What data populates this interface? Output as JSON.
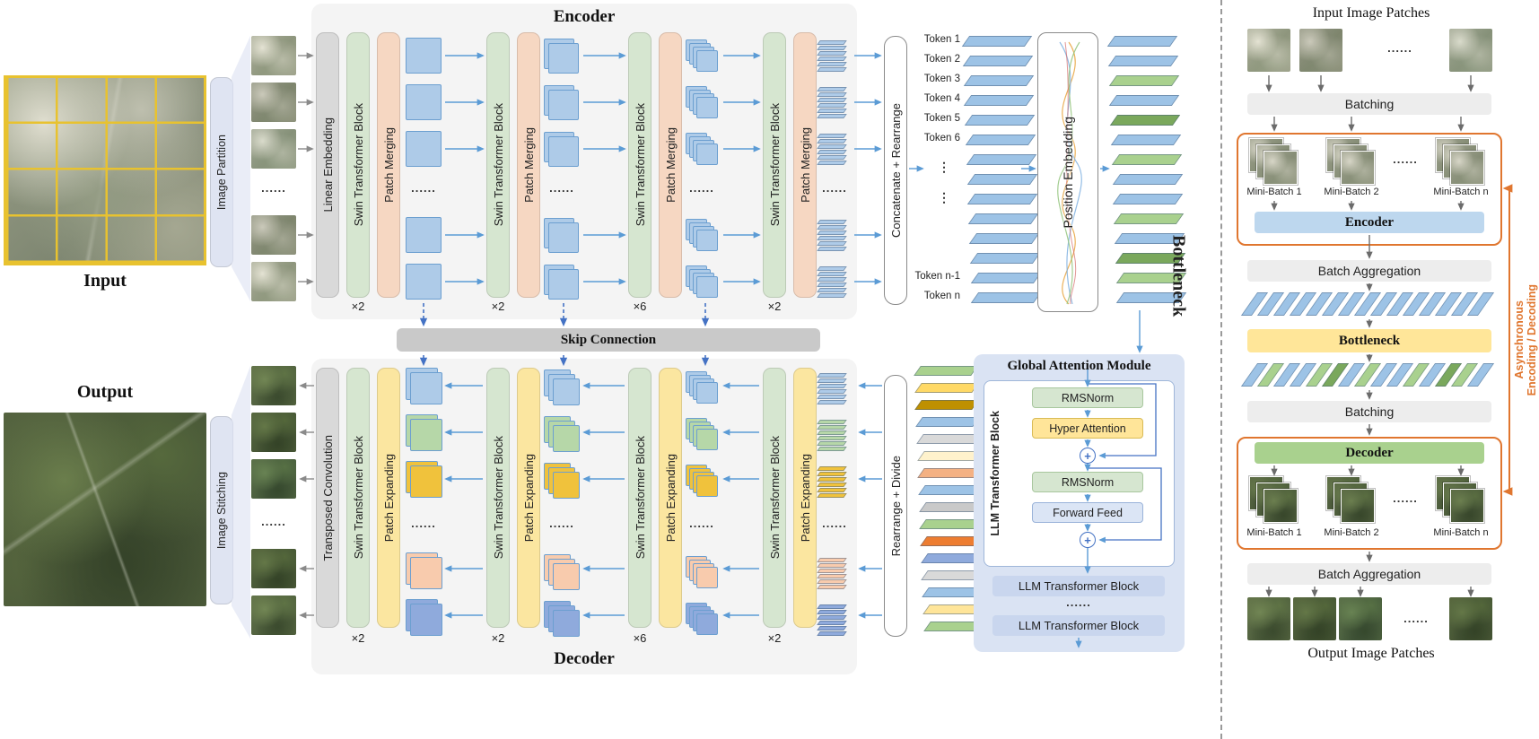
{
  "dots": "......",
  "vdots": "⋮",
  "colors": {
    "fmap": "#aecbe8",
    "fmapb": "#6c9fd0",
    "green": "#d6e6d0",
    "peach": "#f6d7c2",
    "yellow": "#fbe6a0",
    "gray": "#d9d9d9",
    "lavender": "#dfe4f2",
    "skip": "#c9c9c9",
    "fblue": "#aecbe8",
    "fgreen": "#b6d7a8",
    "gold": "#f0c23c",
    "fpeach": "#f8cbad",
    "peri": "#8faadc",
    "bslab": "#9dc3e6",
    "gslab": "#a9d18e",
    "gam": "#dae3f3",
    "llm": "#c9d6ee",
    "rms": "#d6e6d0",
    "hyper": "#ffe599",
    "ff": "#dbe5f5",
    "encb": "#bdd7ee",
    "decb": "#a9d18e",
    "botb": "#ffe699",
    "orange": "#e0762f",
    "arrow_blue": "#5b9bd5",
    "arrow_gray": "#8a8a8a",
    "dash_blue": "#4472c4"
  },
  "left": {
    "input_label": "Input",
    "output_label": "Output",
    "image_partition": "Image Partition",
    "image_stitching": "Image Stitching"
  },
  "encoder": {
    "title": "Encoder",
    "linear_embedding": "Linear Embedding",
    "swin_block": "Swin Transformer Block",
    "patch_merging": "Patch Merging",
    "multipliers": [
      "×2",
      "×2",
      "×6",
      "×2"
    ]
  },
  "skip_connection": "Skip Connection",
  "decoder": {
    "title": "Decoder",
    "transposed_convolution": "Transposed Convolution",
    "swin_block": "Swin Transformer Block",
    "patch_expanding": "Patch Expanding",
    "multipliers": [
      "×2",
      "×2",
      "×6",
      "×2"
    ]
  },
  "bottleneck": {
    "label": "Bottleneck",
    "concatenate": "Concatenate + Rearrange",
    "rearrange": "Rearrange + Divide",
    "position_embedding": "Position Embedding",
    "tokens_top": [
      "Token 1",
      "Token 2",
      "Token 3",
      "Token 4",
      "Token 5",
      "Token 6"
    ],
    "tokens_bottom": [
      "Token n-1",
      "Token n"
    ],
    "stack2_colors": [
      "#9dc3e6",
      "#9dc3e6",
      "#a9d18e",
      "#9dc3e6",
      "#7aa85c",
      "#9dc3e6",
      "#a9d18e",
      "#9dc3e6",
      "#9dc3e6",
      "#a9d18e",
      "#9dc3e6",
      "#7aa85c",
      "#a9d18e",
      "#9dc3e6"
    ],
    "stack3_colors": [
      "#a9d18e",
      "#ffd966",
      "#bf9000",
      "#9dc3e6",
      "#d9d9d9",
      "#fff2cc",
      "#f4b183",
      "#9dc3e6",
      "#c9c9c9",
      "#a9d18e",
      "#ed7d31",
      "#8faadc",
      "#d9d9d9",
      "#9dc3e6",
      "#ffe599",
      "#a9d18e"
    ]
  },
  "gam": {
    "title": "Global Attention Module",
    "llm_block_label": "LLM Transformer Block",
    "rmsnorm1": "RMSNorm",
    "hyper_attention": "Hyper Attention",
    "rmsnorm2": "RMSNorm",
    "forward_feed": "Forward Feed",
    "plus": "+",
    "llm_bar1": "LLM Transformer Block",
    "llm_bar2": "LLM Transformer Block"
  },
  "right": {
    "input_title": "Input Image Patches",
    "output_title": "Output Image Patches",
    "batching1": "Batching",
    "batch_aggregation1": "Batch Aggregation",
    "encoder_bar": "Encoder",
    "bottleneck_bar": "Bottleneck",
    "batching2": "Batching",
    "decoder_bar": "Decoder",
    "batch_aggregation2": "Batch Aggregation",
    "minibatch_enc": [
      "Mini-Batch 1",
      "Mini-Batch 2",
      "Mini-Batch n"
    ],
    "minibatch_dec": [
      "Mini-Batch 1",
      "Mini-Batch 2",
      "Mini-Batch n"
    ],
    "async_line1": "Asynchronous",
    "async_line2": "Encoding / Decoding",
    "ribbon1_colors": [
      "#9dc3e6",
      "#9dc3e6",
      "#9dc3e6",
      "#9dc3e6",
      "#9dc3e6",
      "#9dc3e6",
      "#9dc3e6",
      "#9dc3e6",
      "#9dc3e6",
      "#9dc3e6",
      "#9dc3e6",
      "#9dc3e6",
      "#9dc3e6",
      "#9dc3e6",
      "#9dc3e6"
    ],
    "ribbon2_colors": [
      "#9dc3e6",
      "#a9d18e",
      "#9dc3e6",
      "#9dc3e6",
      "#a9d18e",
      "#7aa85c",
      "#9dc3e6",
      "#a9d18e",
      "#9dc3e6",
      "#9dc3e6",
      "#a9d18e",
      "#9dc3e6",
      "#7aa85c",
      "#a9d18e",
      "#9dc3e6"
    ]
  }
}
